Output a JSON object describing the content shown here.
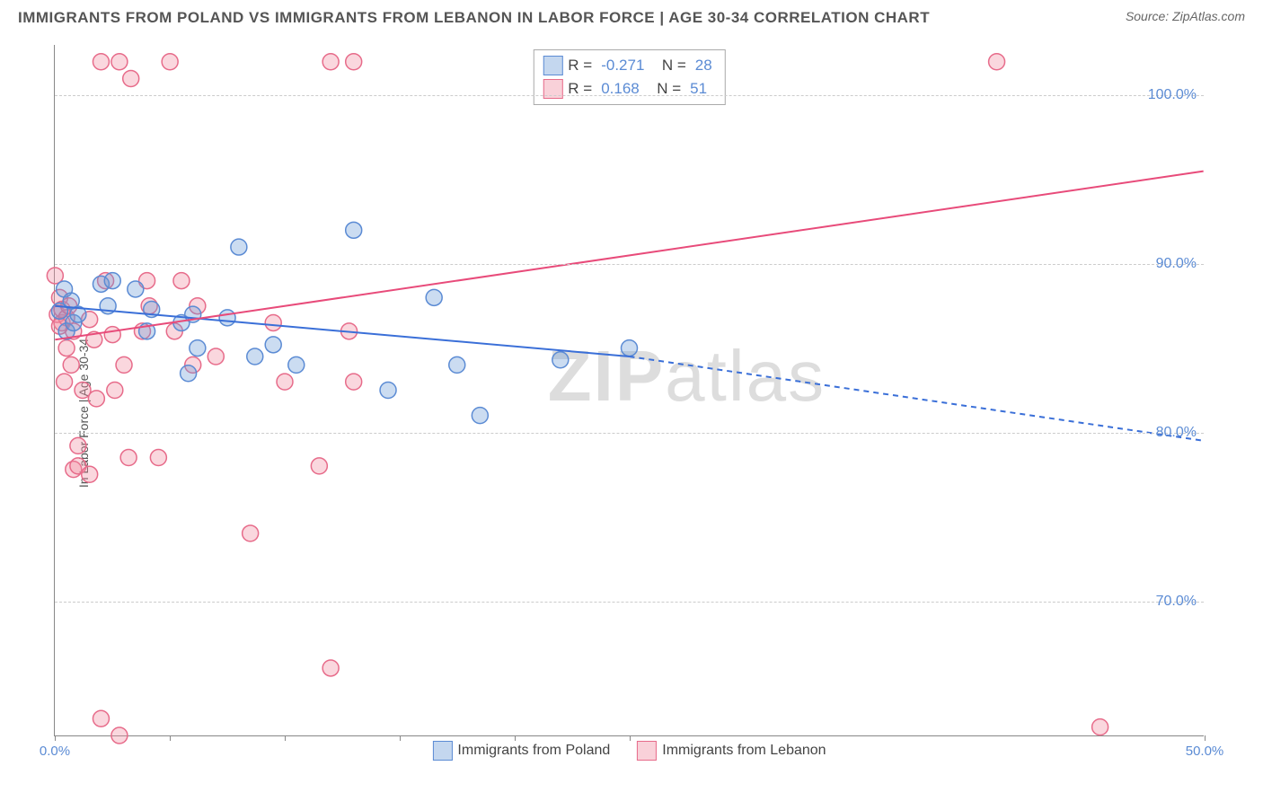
{
  "title": "IMMIGRANTS FROM POLAND VS IMMIGRANTS FROM LEBANON IN LABOR FORCE | AGE 30-34 CORRELATION CHART",
  "source": "Source: ZipAtlas.com",
  "y_axis_label": "In Labor Force | Age 30-34",
  "watermark_bold": "ZIP",
  "watermark_light": "atlas",
  "chart": {
    "type": "scatter-correlation",
    "background_color": "#ffffff",
    "grid_color": "#cccccc",
    "axis_color": "#888888",
    "xlim": [
      0,
      50
    ],
    "ylim": [
      62,
      103
    ],
    "y_ticks": [
      70,
      80,
      90,
      100
    ],
    "y_tick_labels": [
      "70.0%",
      "80.0%",
      "90.0%",
      "100.0%"
    ],
    "x_ticks": [
      0,
      5,
      10,
      15,
      20,
      25,
      50
    ],
    "x_tick_labels_shown": {
      "0": "0.0%",
      "50": "50.0%"
    },
    "series": [
      {
        "name": "Immigrants from Poland",
        "legend_label": "Immigrants from Poland",
        "R": "-0.271",
        "N": "28",
        "marker_fill": "rgba(107,155,214,0.35)",
        "marker_stroke": "#5b8bd4",
        "marker_radius": 9,
        "line_color": "#3a6fd8",
        "line_width": 2,
        "trend_solid": {
          "x1": 0,
          "y1": 87.5,
          "x2": 25,
          "y2": 84.5
        },
        "trend_dashed": {
          "x1": 25,
          "y1": 84.5,
          "x2": 50,
          "y2": 79.5
        },
        "points": [
          [
            0.2,
            87.2
          ],
          [
            0.4,
            88.5
          ],
          [
            0.5,
            86.0
          ],
          [
            0.7,
            87.8
          ],
          [
            0.8,
            86.5
          ],
          [
            1.0,
            87.0
          ],
          [
            2.0,
            88.8
          ],
          [
            2.3,
            87.5
          ],
          [
            2.5,
            89.0
          ],
          [
            3.5,
            88.5
          ],
          [
            4.0,
            86.0
          ],
          [
            4.2,
            87.3
          ],
          [
            5.5,
            86.5
          ],
          [
            5.8,
            83.5
          ],
          [
            6.0,
            87.0
          ],
          [
            6.2,
            85.0
          ],
          [
            7.5,
            86.8
          ],
          [
            8.0,
            91.0
          ],
          [
            8.7,
            84.5
          ],
          [
            9.5,
            85.2
          ],
          [
            10.5,
            84.0
          ],
          [
            13.0,
            92.0
          ],
          [
            14.5,
            82.5
          ],
          [
            16.5,
            88.0
          ],
          [
            17.5,
            84.0
          ],
          [
            18.5,
            81.0
          ],
          [
            22.0,
            84.3
          ],
          [
            25.0,
            85.0
          ]
        ]
      },
      {
        "name": "Immigrants from Lebanon",
        "legend_label": "Immigrants from Lebanon",
        "R": "0.168",
        "N": "51",
        "marker_fill": "rgba(240,140,160,0.35)",
        "marker_stroke": "#e76b8a",
        "marker_radius": 9,
        "line_color": "#e84b7a",
        "line_width": 2,
        "trend_solid": {
          "x1": 0,
          "y1": 85.5,
          "x2": 50,
          "y2": 95.5
        },
        "trend_dashed": null,
        "points": [
          [
            0.0,
            89.3
          ],
          [
            0.1,
            87.0
          ],
          [
            0.2,
            88.0
          ],
          [
            0.3,
            86.5
          ],
          [
            0.3,
            87.3
          ],
          [
            0.4,
            83.0
          ],
          [
            0.5,
            85.0
          ],
          [
            0.5,
            86.8
          ],
          [
            0.6,
            87.5
          ],
          [
            0.7,
            84.0
          ],
          [
            0.8,
            86.0
          ],
          [
            0.8,
            77.8
          ],
          [
            1.0,
            78.0
          ],
          [
            1.0,
            79.2
          ],
          [
            1.2,
            82.5
          ],
          [
            1.5,
            86.7
          ],
          [
            1.5,
            77.5
          ],
          [
            1.7,
            85.5
          ],
          [
            1.8,
            82.0
          ],
          [
            2.0,
            102.0
          ],
          [
            2.0,
            63.0
          ],
          [
            2.2,
            89.0
          ],
          [
            2.5,
            85.8
          ],
          [
            2.6,
            82.5
          ],
          [
            2.8,
            62.0
          ],
          [
            2.8,
            102.0
          ],
          [
            3.0,
            84.0
          ],
          [
            3.2,
            78.5
          ],
          [
            3.3,
            101.0
          ],
          [
            3.8,
            86.0
          ],
          [
            4.0,
            89.0
          ],
          [
            4.1,
            87.5
          ],
          [
            4.5,
            78.5
          ],
          [
            5.0,
            102.0
          ],
          [
            5.2,
            86.0
          ],
          [
            5.5,
            89.0
          ],
          [
            6.0,
            84.0
          ],
          [
            6.2,
            87.5
          ],
          [
            7.0,
            84.5
          ],
          [
            8.5,
            74.0
          ],
          [
            9.5,
            86.5
          ],
          [
            10.0,
            83.0
          ],
          [
            11.5,
            78.0
          ],
          [
            12.0,
            102.0
          ],
          [
            12.0,
            66.0
          ],
          [
            12.8,
            86.0
          ],
          [
            13.0,
            83.0
          ],
          [
            13.0,
            102.0
          ],
          [
            41.0,
            102.0
          ],
          [
            45.5,
            62.5
          ],
          [
            0.2,
            86.3
          ]
        ]
      }
    ]
  }
}
